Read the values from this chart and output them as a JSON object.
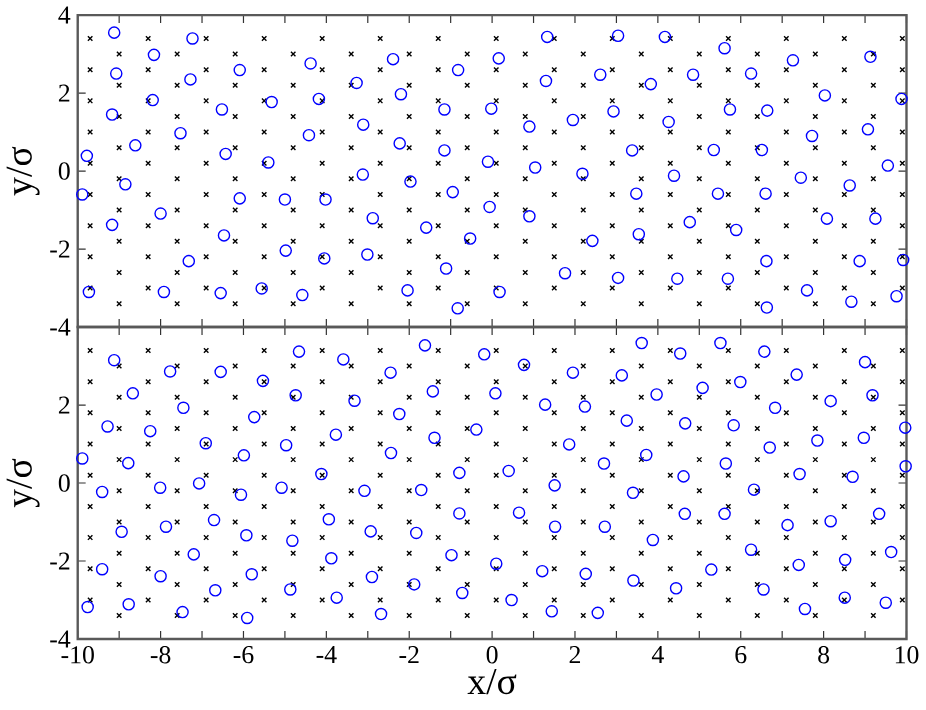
{
  "chart_data": [
    {
      "type": "scatter",
      "ylabel": "y/σ",
      "xlim": [
        -10,
        10
      ],
      "ylim": [
        -4,
        4
      ],
      "tick_labels": "y",
      "xticks": [
        -10,
        {
          "value": -9,
          "label": null
        },
        -8,
        {
          "value": -7,
          "label": null
        },
        -6,
        {
          "value": -5,
          "label": null
        },
        -4,
        {
          "value": -3,
          "label": null
        },
        -2,
        {
          "value": -1,
          "label": null
        },
        0,
        {
          "value": 1,
          "label": null
        },
        2,
        {
          "value": 3,
          "label": null
        },
        4,
        {
          "value": 5,
          "label": null
        },
        6,
        {
          "value": 7,
          "label": null
        },
        8,
        {
          "value": 9,
          "label": null
        },
        10
      ],
      "yticks": [
        -4,
        -2,
        0,
        2,
        4
      ],
      "series": [
        {
          "color": "#000000",
          "marker": "cross",
          "x": [
            -9.7,
            -9.7,
            -9.7,
            -9.7,
            -9.7,
            -9.7,
            -9.7,
            -9.7,
            -9.7,
            -9.0,
            -9.0,
            -9.0,
            -9.0,
            -9.0,
            -9.0,
            -9.0,
            -9.0,
            -9.0,
            -8.3,
            -8.3,
            -8.3,
            -8.3,
            -8.3,
            -8.3,
            -8.3,
            -8.3,
            -8.3,
            -7.6,
            -7.6,
            -7.6,
            -7.6,
            -7.6,
            -7.6,
            -7.6,
            -7.6,
            -7.6,
            -6.9,
            -6.9,
            -6.9,
            -6.9,
            -6.9,
            -6.9,
            -6.9,
            -6.9,
            -6.9,
            -6.2,
            -6.2,
            -6.2,
            -6.2,
            -6.2,
            -6.2,
            -6.2,
            -6.2,
            -6.2,
            -5.5,
            -5.5,
            -5.5,
            -5.5,
            -5.5,
            -5.5,
            -5.5,
            -5.5,
            -5.5,
            -4.8,
            -4.8,
            -4.8,
            -4.8,
            -4.8,
            -4.8,
            -4.8,
            -4.8,
            -4.8,
            -4.1,
            -4.1,
            -4.1,
            -4.1,
            -4.1,
            -4.1,
            -4.1,
            -4.1,
            -4.1,
            -3.4,
            -3.4,
            -3.4,
            -3.4,
            -3.4,
            -3.4,
            -3.4,
            -3.4,
            -3.4,
            -2.7,
            -2.7,
            -2.7,
            -2.7,
            -2.7,
            -2.7,
            -2.7,
            -2.7,
            -2.7,
            -2.0,
            -2.0,
            -2.0,
            -2.0,
            -2.0,
            -2.0,
            -2.0,
            -2.0,
            -2.0,
            -1.3,
            -1.3,
            -1.3,
            -1.3,
            -1.3,
            -1.3,
            -1.3,
            -1.3,
            -1.3,
            -0.6,
            -0.6,
            -0.6,
            -0.6,
            -0.6,
            -0.6,
            -0.6,
            -0.6,
            -0.6,
            0.1,
            0.1,
            0.1,
            0.1,
            0.1,
            0.1,
            0.1,
            0.1,
            0.1,
            0.8,
            0.8,
            0.8,
            0.8,
            0.8,
            0.8,
            0.8,
            0.8,
            0.8,
            1.5,
            1.5,
            1.5,
            1.5,
            1.5,
            1.5,
            1.5,
            1.5,
            1.5,
            2.2,
            2.2,
            2.2,
            2.2,
            2.2,
            2.2,
            2.2,
            2.2,
            2.2,
            2.9,
            2.9,
            2.9,
            2.9,
            2.9,
            2.9,
            2.9,
            2.9,
            2.9,
            3.6,
            3.6,
            3.6,
            3.6,
            3.6,
            3.6,
            3.6,
            3.6,
            3.6,
            4.3,
            4.3,
            4.3,
            4.3,
            4.3,
            4.3,
            4.3,
            4.3,
            4.3,
            5.0,
            5.0,
            5.0,
            5.0,
            5.0,
            5.0,
            5.0,
            5.0,
            5.0,
            5.7,
            5.7,
            5.7,
            5.7,
            5.7,
            5.7,
            5.7,
            5.7,
            5.7,
            6.4,
            6.4,
            6.4,
            6.4,
            6.4,
            6.4,
            6.4,
            6.4,
            6.4,
            7.1,
            7.1,
            7.1,
            7.1,
            7.1,
            7.1,
            7.1,
            7.1,
            7.1,
            7.8,
            7.8,
            7.8,
            7.8,
            7.8,
            7.8,
            7.8,
            7.8,
            7.8,
            8.5,
            8.5,
            8.5,
            8.5,
            8.5,
            8.5,
            8.5,
            8.5,
            8.5,
            9.2,
            9.2,
            9.2,
            9.2,
            9.2,
            9.2,
            9.2,
            9.2,
            9.2,
            9.9,
            9.9,
            9.9,
            9.9,
            9.9,
            9.9,
            9.9,
            9.9,
            9.9
          ],
          "values": [
            3.4,
            2.6,
            1.8,
            1.0,
            0.2,
            -0.6,
            -1.4,
            -2.2,
            -3.0,
            3.0,
            2.2,
            1.4,
            0.6,
            -0.2,
            -1.0,
            -1.8,
            -2.6,
            -3.4,
            3.4,
            2.6,
            1.8,
            1.0,
            0.2,
            -0.6,
            -1.4,
            -2.2,
            -3.0,
            3.0,
            2.2,
            1.4,
            0.6,
            -0.2,
            -1.0,
            -1.8,
            -2.6,
            -3.4,
            3.4,
            2.6,
            1.8,
            1.0,
            0.2,
            -0.6,
            -1.4,
            -2.2,
            -3.0,
            3.0,
            2.2,
            1.4,
            0.6,
            -0.2,
            -1.0,
            -1.8,
            -2.6,
            -3.4,
            3.4,
            2.6,
            1.8,
            1.0,
            0.2,
            -0.6,
            -1.4,
            -2.2,
            -3.0,
            3.0,
            2.2,
            1.4,
            0.6,
            -0.2,
            -1.0,
            -1.8,
            -2.6,
            -3.4,
            3.4,
            2.6,
            1.8,
            1.0,
            0.2,
            -0.6,
            -1.4,
            -2.2,
            -3.0,
            3.0,
            2.2,
            1.4,
            0.6,
            -0.2,
            -1.0,
            -1.8,
            -2.6,
            -3.4,
            3.4,
            2.6,
            1.8,
            1.0,
            0.2,
            -0.6,
            -1.4,
            -2.2,
            -3.0,
            3.0,
            2.2,
            1.4,
            0.6,
            -0.2,
            -1.0,
            -1.8,
            -2.6,
            -3.4,
            3.4,
            2.6,
            1.8,
            1.0,
            0.2,
            -0.6,
            -1.4,
            -2.2,
            -3.0,
            3.0,
            2.2,
            1.4,
            0.6,
            -0.2,
            -1.0,
            -1.8,
            -2.6,
            -3.4,
            3.4,
            2.6,
            1.8,
            1.0,
            0.2,
            -0.6,
            -1.4,
            -2.2,
            -3.0,
            3.0,
            2.2,
            1.4,
            0.6,
            -0.2,
            -1.0,
            -1.8,
            -2.6,
            -3.4,
            3.4,
            2.6,
            1.8,
            1.0,
            0.2,
            -0.6,
            -1.4,
            -2.2,
            -3.0,
            3.0,
            2.2,
            1.4,
            0.6,
            -0.2,
            -1.0,
            -1.8,
            -2.6,
            -3.4,
            3.4,
            2.6,
            1.8,
            1.0,
            0.2,
            -0.6,
            -1.4,
            -2.2,
            -3.0,
            3.0,
            2.2,
            1.4,
            0.6,
            -0.2,
            -1.0,
            -1.8,
            -2.6,
            -3.4,
            3.4,
            2.6,
            1.8,
            1.0,
            0.2,
            -0.6,
            -1.4,
            -2.2,
            -3.0,
            3.0,
            2.2,
            1.4,
            0.6,
            -0.2,
            -1.0,
            -1.8,
            -2.6,
            -3.4,
            3.4,
            2.6,
            1.8,
            1.0,
            0.2,
            -0.6,
            -1.4,
            -2.2,
            -3.0,
            3.0,
            2.2,
            1.4,
            0.6,
            -0.2,
            -1.0,
            -1.8,
            -2.6,
            -3.4,
            3.4,
            2.6,
            1.8,
            1.0,
            0.2,
            -0.6,
            -1.4,
            -2.2,
            -3.0,
            3.0,
            2.2,
            1.4,
            0.6,
            -0.2,
            -1.0,
            -1.8,
            -2.6,
            -3.4,
            3.4,
            2.6,
            1.8,
            1.0,
            0.2,
            -0.6,
            -1.4,
            -2.2,
            -3.0,
            3.0,
            2.2,
            1.4,
            0.6,
            -0.2,
            -1.0,
            -1.8,
            -2.6,
            -3.4,
            3.4,
            2.6,
            1.8,
            1.0,
            0.2,
            -0.6,
            -1.4,
            -2.2,
            -3.0
          ]
        },
        {
          "color": "#0000ff",
          "marker": "circle",
          "x": [
            -9.12,
            -7.23,
            -8.16,
            -9.07,
            -6.09,
            -7.28,
            -8.19,
            -9.17,
            -6.52,
            -5.32,
            -4.38,
            -4.18,
            -3.27,
            -2.39,
            -2.2,
            -0.82,
            -1.15,
            -0.02,
            0.16,
            -9.78,
            -8.61,
            -7.52,
            -6.43,
            -5.4,
            -4.42,
            -3.11,
            -2.23,
            -1.15,
            -0.1,
            -9.89,
            -8.85,
            -8.0,
            -6.09,
            -5.0,
            -4.02,
            -3.12,
            -1.97,
            -0.95,
            -0.06,
            -9.17,
            -6.47,
            -2.88,
            -1.59,
            -0.53,
            -7.32,
            -4.98,
            -4.05,
            -3.01,
            -1.11,
            -9.73,
            -7.92,
            -6.55,
            -5.56,
            -4.58,
            -2.04,
            -0.83,
            0.18,
            1.33,
            3.04,
            4.17,
            5.61,
            7.26,
            9.13,
            1.3,
            2.61,
            3.83,
            4.85,
            6.25,
            0.9,
            1.95,
            2.93,
            4.26,
            5.74,
            6.64,
            8.03,
            9.88,
            7.72,
            9.07,
            1.04,
            2.18,
            3.38,
            4.39,
            5.35,
            6.51,
            7.45,
            8.63,
            9.55,
            0.9,
            3.48,
            5.45,
            6.6,
            4.77,
            5.89,
            8.08,
            9.25,
            2.42,
            3.54,
            6.62,
            8.87,
            9.92,
            1.76,
            3.04,
            4.47,
            5.69,
            6.63,
            7.6,
            8.67,
            9.76
          ],
          "values": [
            3.55,
            3.4,
            2.98,
            2.5,
            2.59,
            2.35,
            1.82,
            1.45,
            1.58,
            1.77,
            2.76,
            1.85,
            2.26,
            2.87,
            1.97,
            2.59,
            1.58,
            1.6,
            2.89,
            0.39,
            0.66,
            0.97,
            0.44,
            0.22,
            0.92,
            1.19,
            0.71,
            0.53,
            0.24,
            -0.6,
            -0.34,
            -1.09,
            -0.7,
            -0.73,
            -0.73,
            -0.09,
            -0.27,
            -0.54,
            -0.92,
            -1.38,
            -1.65,
            -1.21,
            -1.45,
            -1.73,
            -2.31,
            -2.04,
            -2.24,
            -2.14,
            -2.5,
            -3.1,
            -3.1,
            -3.13,
            -3.01,
            -3.18,
            -3.06,
            -3.52,
            -3.1,
            3.44,
            3.47,
            3.44,
            3.15,
            2.84,
            2.93,
            2.31,
            2.47,
            2.23,
            2.47,
            2.5,
            1.14,
            1.31,
            1.53,
            1.26,
            1.58,
            1.55,
            1.94,
            1.85,
            0.9,
            1.07,
            0.09,
            -0.07,
            0.53,
            -0.12,
            0.54,
            0.54,
            -0.17,
            -0.37,
            0.14,
            -1.16,
            -0.58,
            -0.58,
            -0.58,
            -1.31,
            -1.51,
            -1.22,
            -1.22,
            -1.79,
            -1.62,
            -2.31,
            -2.31,
            -2.28,
            -2.62,
            -2.74,
            -2.76,
            -2.76,
            -3.5,
            -3.06,
            -3.35,
            -3.21
          ]
        }
      ]
    },
    {
      "type": "scatter",
      "xlabel": "x/σ",
      "ylabel": "y/σ",
      "xlim": [
        -10,
        10
      ],
      "ylim": [
        -4,
        4
      ],
      "xticks": [
        -10,
        {
          "value": -9,
          "label": null
        },
        -8,
        {
          "value": -7,
          "label": null
        },
        -6,
        {
          "value": -5,
          "label": null
        },
        -4,
        {
          "value": -3,
          "label": null
        },
        -2,
        {
          "value": -1,
          "label": null
        },
        0,
        {
          "value": 1,
          "label": null
        },
        2,
        {
          "value": 3,
          "label": null
        },
        4,
        {
          "value": 5,
          "label": null
        },
        6,
        {
          "value": 7,
          "label": null
        },
        8,
        {
          "value": 9,
          "label": null
        },
        10
      ],
      "yticks": [
        -4,
        -2,
        0,
        2
      ],
      "series": [
        {
          "color": "#000000",
          "marker": "cross",
          "x": [
            -9.7,
            -9.7,
            -9.7,
            -9.7,
            -9.7,
            -9.7,
            -9.7,
            -9.7,
            -9.7,
            -9.0,
            -9.0,
            -9.0,
            -9.0,
            -9.0,
            -9.0,
            -9.0,
            -9.0,
            -9.0,
            -8.3,
            -8.3,
            -8.3,
            -8.3,
            -8.3,
            -8.3,
            -8.3,
            -8.3,
            -8.3,
            -7.6,
            -7.6,
            -7.6,
            -7.6,
            -7.6,
            -7.6,
            -7.6,
            -7.6,
            -7.6,
            -6.9,
            -6.9,
            -6.9,
            -6.9,
            -6.9,
            -6.9,
            -6.9,
            -6.9,
            -6.9,
            -6.2,
            -6.2,
            -6.2,
            -6.2,
            -6.2,
            -6.2,
            -6.2,
            -6.2,
            -6.2,
            -5.5,
            -5.5,
            -5.5,
            -5.5,
            -5.5,
            -5.5,
            -5.5,
            -5.5,
            -5.5,
            -4.8,
            -4.8,
            -4.8,
            -4.8,
            -4.8,
            -4.8,
            -4.8,
            -4.8,
            -4.8,
            -4.1,
            -4.1,
            -4.1,
            -4.1,
            -4.1,
            -4.1,
            -4.1,
            -4.1,
            -4.1,
            -3.4,
            -3.4,
            -3.4,
            -3.4,
            -3.4,
            -3.4,
            -3.4,
            -3.4,
            -3.4,
            -2.7,
            -2.7,
            -2.7,
            -2.7,
            -2.7,
            -2.7,
            -2.7,
            -2.7,
            -2.7,
            -2.0,
            -2.0,
            -2.0,
            -2.0,
            -2.0,
            -2.0,
            -2.0,
            -2.0,
            -2.0,
            -1.3,
            -1.3,
            -1.3,
            -1.3,
            -1.3,
            -1.3,
            -1.3,
            -1.3,
            -1.3,
            -0.6,
            -0.6,
            -0.6,
            -0.6,
            -0.6,
            -0.6,
            -0.6,
            -0.6,
            -0.6,
            0.1,
            0.1,
            0.1,
            0.1,
            0.1,
            0.1,
            0.1,
            0.1,
            0.1,
            0.8,
            0.8,
            0.8,
            0.8,
            0.8,
            0.8,
            0.8,
            0.8,
            0.8,
            1.5,
            1.5,
            1.5,
            1.5,
            1.5,
            1.5,
            1.5,
            1.5,
            1.5,
            2.2,
            2.2,
            2.2,
            2.2,
            2.2,
            2.2,
            2.2,
            2.2,
            2.2,
            2.9,
            2.9,
            2.9,
            2.9,
            2.9,
            2.9,
            2.9,
            2.9,
            2.9,
            3.6,
            3.6,
            3.6,
            3.6,
            3.6,
            3.6,
            3.6,
            3.6,
            3.6,
            4.3,
            4.3,
            4.3,
            4.3,
            4.3,
            4.3,
            4.3,
            4.3,
            4.3,
            5.0,
            5.0,
            5.0,
            5.0,
            5.0,
            5.0,
            5.0,
            5.0,
            5.0,
            5.7,
            5.7,
            5.7,
            5.7,
            5.7,
            5.7,
            5.7,
            5.7,
            5.7,
            6.4,
            6.4,
            6.4,
            6.4,
            6.4,
            6.4,
            6.4,
            6.4,
            6.4,
            7.1,
            7.1,
            7.1,
            7.1,
            7.1,
            7.1,
            7.1,
            7.1,
            7.1,
            7.8,
            7.8,
            7.8,
            7.8,
            7.8,
            7.8,
            7.8,
            7.8,
            7.8,
            8.5,
            8.5,
            8.5,
            8.5,
            8.5,
            8.5,
            8.5,
            8.5,
            8.5,
            9.2,
            9.2,
            9.2,
            9.2,
            9.2,
            9.2,
            9.2,
            9.2,
            9.2,
            9.9,
            9.9,
            9.9,
            9.9,
            9.9,
            9.9,
            9.9,
            9.9,
            9.9
          ],
          "values": [
            3.4,
            2.6,
            1.8,
            1.0,
            0.2,
            -0.6,
            -1.4,
            -2.2,
            -3.0,
            3.0,
            2.2,
            1.4,
            0.6,
            -0.2,
            -1.0,
            -1.8,
            -2.6,
            -3.4,
            3.4,
            2.6,
            1.8,
            1.0,
            0.2,
            -0.6,
            -1.4,
            -2.2,
            -3.0,
            3.0,
            2.2,
            1.4,
            0.6,
            -0.2,
            -1.0,
            -1.8,
            -2.6,
            -3.4,
            3.4,
            2.6,
            1.8,
            1.0,
            0.2,
            -0.6,
            -1.4,
            -2.2,
            -3.0,
            3.0,
            2.2,
            1.4,
            0.6,
            -0.2,
            -1.0,
            -1.8,
            -2.6,
            -3.4,
            3.4,
            2.6,
            1.8,
            1.0,
            0.2,
            -0.6,
            -1.4,
            -2.2,
            -3.0,
            3.0,
            2.2,
            1.4,
            0.6,
            -0.2,
            -1.0,
            -1.8,
            -2.6,
            -3.4,
            3.4,
            2.6,
            1.8,
            1.0,
            0.2,
            -0.6,
            -1.4,
            -2.2,
            -3.0,
            3.0,
            2.2,
            1.4,
            0.6,
            -0.2,
            -1.0,
            -1.8,
            -2.6,
            -3.4,
            3.4,
            2.6,
            1.8,
            1.0,
            0.2,
            -0.6,
            -1.4,
            -2.2,
            -3.0,
            3.0,
            2.2,
            1.4,
            0.6,
            -0.2,
            -1.0,
            -1.8,
            -2.6,
            -3.4,
            3.4,
            2.6,
            1.8,
            1.0,
            0.2,
            -0.6,
            -1.4,
            -2.2,
            -3.0,
            3.0,
            2.2,
            1.4,
            0.6,
            -0.2,
            -1.0,
            -1.8,
            -2.6,
            -3.4,
            3.4,
            2.6,
            1.8,
            1.0,
            0.2,
            -0.6,
            -1.4,
            -2.2,
            -3.0,
            3.0,
            2.2,
            1.4,
            0.6,
            -0.2,
            -1.0,
            -1.8,
            -2.6,
            -3.4,
            3.4,
            2.6,
            1.8,
            1.0,
            0.2,
            -0.6,
            -1.4,
            -2.2,
            -3.0,
            3.0,
            2.2,
            1.4,
            0.6,
            -0.2,
            -1.0,
            -1.8,
            -2.6,
            -3.4,
            3.4,
            2.6,
            1.8,
            1.0,
            0.2,
            -0.6,
            -1.4,
            -2.2,
            -3.0,
            3.0,
            2.2,
            1.4,
            0.6,
            -0.2,
            -1.0,
            -1.8,
            -2.6,
            -3.4,
            3.4,
            2.6,
            1.8,
            1.0,
            0.2,
            -0.6,
            -1.4,
            -2.2,
            -3.0,
            3.0,
            2.2,
            1.4,
            0.6,
            -0.2,
            -1.0,
            -1.8,
            -2.6,
            -3.4,
            3.4,
            2.6,
            1.8,
            1.0,
            0.2,
            -0.6,
            -1.4,
            -2.2,
            -3.0,
            3.0,
            2.2,
            1.4,
            0.6,
            -0.2,
            -1.0,
            -1.8,
            -2.6,
            -3.4,
            3.4,
            2.6,
            1.8,
            1.0,
            0.2,
            -0.6,
            -1.4,
            -2.2,
            -3.0,
            3.0,
            2.2,
            1.4,
            0.6,
            -0.2,
            -1.0,
            -1.8,
            -2.6,
            -3.4,
            3.4,
            2.6,
            1.8,
            1.0,
            0.2,
            -0.6,
            -1.4,
            -2.2,
            -3.0,
            3.0,
            2.2,
            1.4,
            0.6,
            -0.2,
            -1.0,
            -1.8,
            -2.6,
            -3.4,
            3.4,
            2.6,
            1.8,
            1.0,
            0.2,
            -0.6,
            -1.4,
            -2.2,
            -3.0
          ]
        },
        {
          "color": "#0000ff",
          "marker": "circle",
          "x": [
            -9.12,
            -4.66,
            -3.59,
            -1.62,
            -0.19,
            -7.77,
            -6.55,
            -2.45,
            -8.67,
            -5.53,
            -4.74,
            -3.32,
            -1.43,
            0.08,
            -7.45,
            -9.28,
            -8.25,
            -5.74,
            -3.77,
            -2.24,
            -1.39,
            -0.38,
            -6.91,
            -4.97,
            -2.44,
            -9.89,
            -8.78,
            -5.99,
            -4.12,
            -0.79,
            -8.01,
            -7.07,
            -9.41,
            -6.06,
            -5.08,
            -3.08,
            -1.71,
            -6.71,
            -8.94,
            -7.87,
            -5.93,
            -4.82,
            -3.94,
            -2.93,
            -1.83,
            -0.79,
            -7.2,
            -3.88,
            -0.98,
            0.1,
            -9.41,
            -8.0,
            -5.8,
            -2.9,
            -6.68,
            -4.87,
            -1.88,
            -0.72,
            -9.76,
            -8.77,
            -7.47,
            -5.91,
            -3.75,
            -2.68,
            0.77,
            1.95,
            3.13,
            3.61,
            4.54,
            5.51,
            6.57,
            9.0,
            7.35,
            1.28,
            2.24,
            3.97,
            5.08,
            5.99,
            6.83,
            8.17,
            9.18,
            1.86,
            3.25,
            4.66,
            5.83,
            6.7,
            7.85,
            8.97,
            9.97,
            0.4,
            1.51,
            2.7,
            3.72,
            4.62,
            5.64,
            6.32,
            7.42,
            8.7,
            9.98,
            3.4,
            0.65,
            1.52,
            2.72,
            3.88,
            4.65,
            5.61,
            7.13,
            8.17,
            9.34,
            1.21,
            2.26,
            3.41,
            4.44,
            5.29,
            6.25,
            7.4,
            8.52,
            9.63,
            0.47,
            1.44,
            2.55,
            6.55,
            7.55,
            8.51,
            9.5
          ],
          "values": [
            3.15,
            3.37,
            3.17,
            3.53,
            3.3,
            2.86,
            2.85,
            2.83,
            2.3,
            2.62,
            2.25,
            2.11,
            2.35,
            2.3,
            1.93,
            1.45,
            1.33,
            1.69,
            1.24,
            1.77,
            1.16,
            1.37,
            1.02,
            0.97,
            0.77,
            0.63,
            0.51,
            0.71,
            0.23,
            0.26,
            -0.12,
            -0.01,
            -0.23,
            -0.3,
            -0.12,
            -0.2,
            -0.18,
            -0.95,
            -1.25,
            -1.12,
            -1.34,
            -1.48,
            -0.93,
            -1.24,
            -1.28,
            -0.78,
            -1.83,
            -1.93,
            -1.85,
            -2.07,
            -2.21,
            -2.39,
            -2.34,
            -2.41,
            -2.75,
            -2.73,
            -2.6,
            -2.82,
            -3.18,
            -3.11,
            -3.31,
            -3.46,
            -2.94,
            -3.36,
            3.03,
            2.83,
            2.76,
            3.59,
            3.32,
            3.59,
            3.37,
            3.1,
            2.78,
            2.01,
            1.96,
            2.27,
            2.44,
            2.59,
            1.93,
            2.1,
            2.25,
            0.99,
            1.6,
            1.53,
            1.48,
            0.91,
            1.09,
            1.16,
            1.42,
            0.31,
            -0.06,
            0.5,
            0.72,
            0.17,
            0.5,
            -0.17,
            0.23,
            0.16,
            0.43,
            -0.25,
            -0.76,
            -1.12,
            -1.12,
            -1.46,
            -0.79,
            -0.79,
            -1.08,
            -0.98,
            -0.79,
            -2.26,
            -2.33,
            -2.5,
            -2.7,
            -2.22,
            -1.71,
            -2.1,
            -1.97,
            -1.77,
            -3.0,
            -3.29,
            -3.33,
            -2.73,
            -3.23,
            -2.94,
            -3.07
          ]
        }
      ]
    }
  ]
}
